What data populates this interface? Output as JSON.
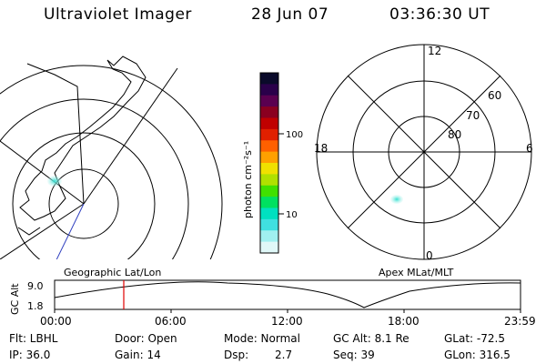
{
  "header": {
    "instrument": "Ultraviolet Imager",
    "date": "28 Jun 07",
    "time": "03:36:30 UT"
  },
  "colorbar": {
    "unit_label": "photon cm⁻²s⁻¹",
    "ticks": [
      "100",
      "10"
    ],
    "colors": [
      "#0a0a2a",
      "#2a004a",
      "#5a0050",
      "#8a0020",
      "#c00000",
      "#e02000",
      "#ff6000",
      "#ffa000",
      "#f0e000",
      "#b0e000",
      "#40e000",
      "#00e060",
      "#00e0c0",
      "#40e0e0",
      "#a0f0f0",
      "#e0f8f8"
    ]
  },
  "left_panel": {
    "label": "Geographic Lat/Lon"
  },
  "right_panel": {
    "label": "Apex MLat/MLT",
    "mlt_labels": {
      "top": "12",
      "left": "18",
      "right": "6",
      "bottom": "0"
    },
    "lat_labels": [
      "60",
      "70",
      "80"
    ]
  },
  "timeline": {
    "axis_label": "GC Alt",
    "y_ticks": [
      "9.0",
      "1.8"
    ],
    "x_ticks": [
      "00:00",
      "06:00",
      "12:00",
      "18:00",
      "23:59"
    ],
    "marker_color": "#e00000"
  },
  "info": {
    "filter": "Flt: LBHL",
    "ip": "IP: 36.0",
    "door": "Door: Open",
    "gain": "Gain: 14",
    "mode": "Mode: Normal",
    "dsp_label": "Dsp:",
    "dsp_value": "2.7",
    "gc_alt": "GC Alt: 8.1 Re",
    "seq": "Seq: 39",
    "glat": "GLat: -72.5",
    "glon": "GLon: 316.5"
  }
}
